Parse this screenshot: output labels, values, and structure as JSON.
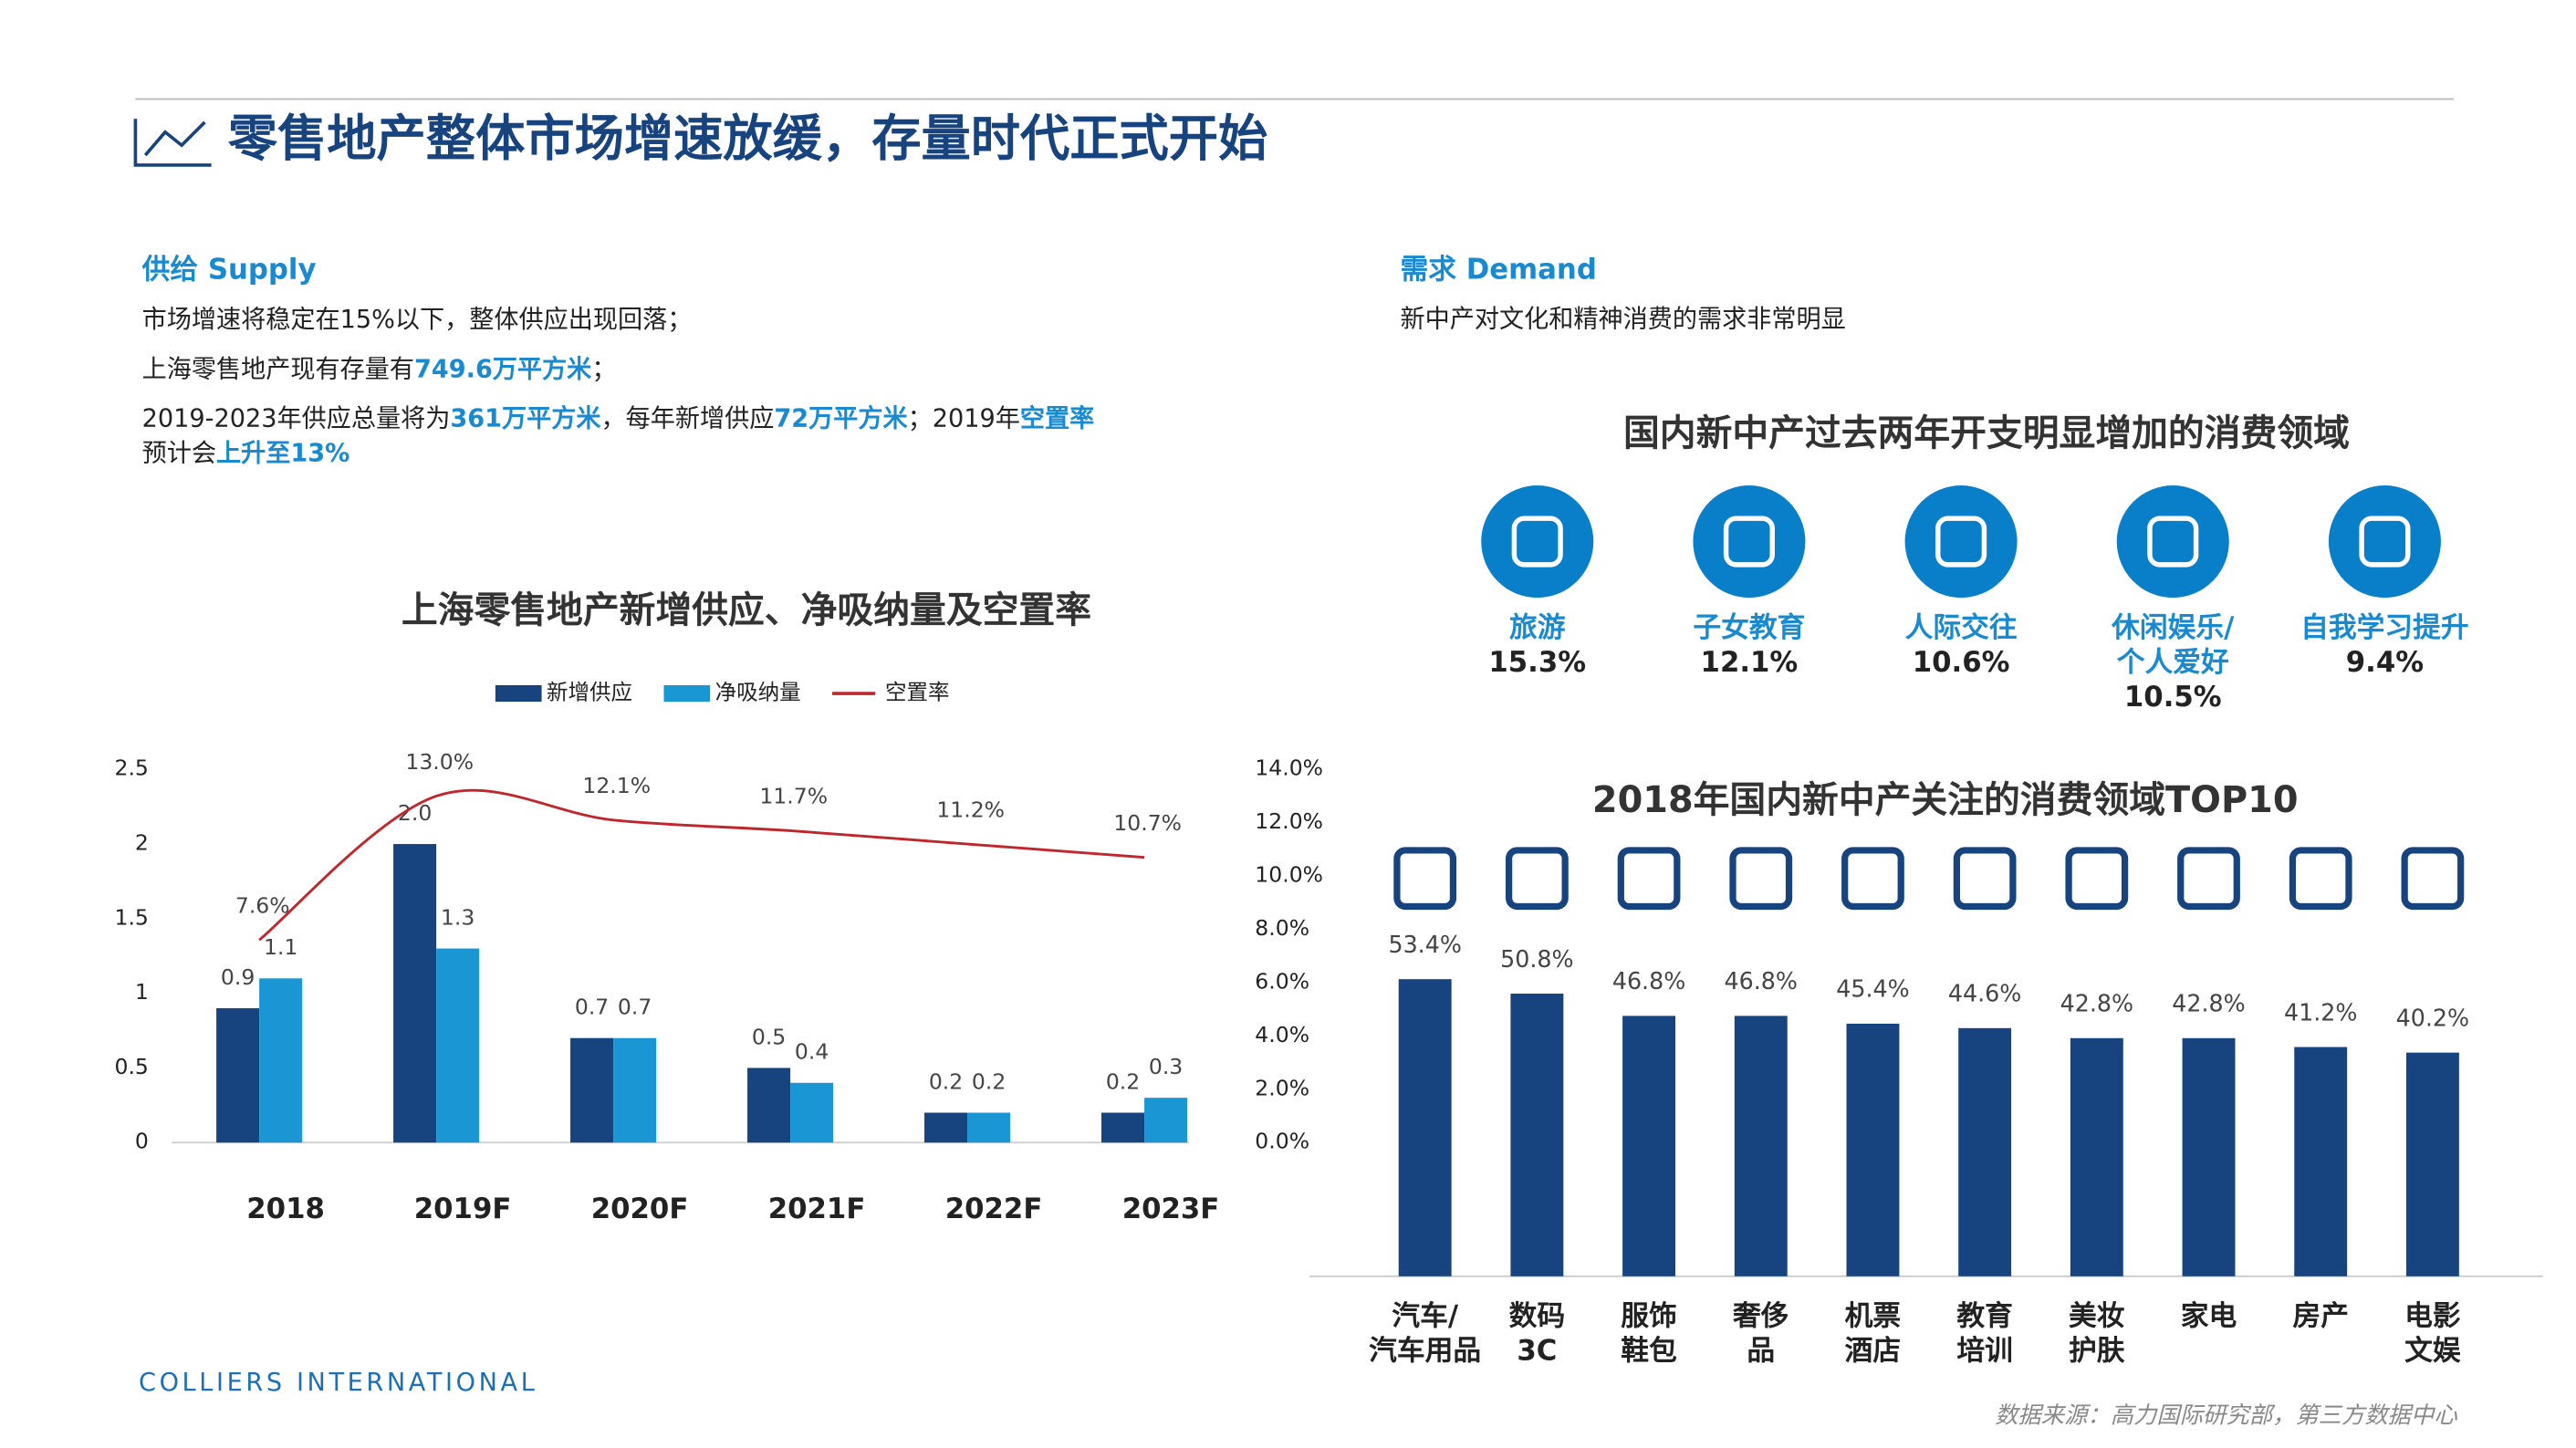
{
  "header": {
    "title": "零售地产整体市场增速放缓，存量时代正式开始"
  },
  "supply": {
    "heading": "供给 Supply",
    "lines": [
      [
        "市场增速将稳定在15%以下，整体供应出现回落；"
      ],
      [
        "上海零售地产现有存量有",
        "749.6万平方米",
        "；"
      ],
      [
        "2019-2023年供应总量将为",
        "361万平方米",
        "，每年新增供应",
        "72万平方米",
        "；2019年",
        "空置率"
      ],
      [
        "预计会",
        "上升至13%"
      ]
    ]
  },
  "demand": {
    "heading": "需求 Demand",
    "text": "新中产对文化和精神消费的需求非常明显",
    "subtitle": "国内新中产过去两年开支明显增加的消费领域",
    "items": [
      {
        "label": [
          "旅游"
        ],
        "value": "15.3%"
      },
      {
        "label": [
          "子女教育"
        ],
        "value": "12.1%"
      },
      {
        "label": [
          "人际交往"
        ],
        "value": "10.6%"
      },
      {
        "label": [
          "休闲娱乐/",
          "个人爱好"
        ],
        "value": "10.5%"
      },
      {
        "label": [
          "自我学习提升"
        ],
        "value": "9.4%"
      }
    ]
  },
  "chart_data": [
    {
      "type": "bar",
      "title": "上海零售地产新增供应、净吸纳量及空置率",
      "categories": [
        "2018",
        "2019F",
        "2020F",
        "2021F",
        "2022F",
        "2023F"
      ],
      "series": [
        {
          "name": "新增供应",
          "type": "bar",
          "color": "#17437f",
          "values": [
            0.9,
            2,
            0.7,
            0.5,
            0.2,
            0.2
          ],
          "value_labels": [
            "0.9",
            "2.0",
            "0.7",
            "0.5",
            "0.2",
            "0.2"
          ]
        },
        {
          "name": "净吸纳量",
          "type": "bar",
          "color": "#1b96d4",
          "values": [
            1.1,
            1.3,
            0.7,
            0.4,
            0.2,
            0.3
          ]
        },
        {
          "name": "空置率",
          "type": "line",
          "axis": "y2",
          "color": "#c0272d",
          "values": [
            7.6,
            13,
            12.1,
            11.7,
            11.2,
            10.7
          ],
          "value_labels": [
            "7.6%",
            "13.0%",
            "12.1%",
            "11.7%",
            "11.2%",
            "10.7%"
          ]
        }
      ],
      "ylim": [
        0,
        2.5
      ],
      "yticks": [
        0,
        0.5,
        1,
        1.5,
        2,
        2.5
      ],
      "y2lim": [
        0,
        14
      ],
      "y2ticks": [
        {
          "value": 0,
          "label": "0.0%"
        },
        {
          "value": 2,
          "label": "2.0%"
        },
        {
          "value": 4,
          "label": "4.0%"
        },
        {
          "value": 6,
          "label": "6.0%"
        },
        {
          "value": 8,
          "label": "8.0%"
        },
        {
          "value": 10,
          "label": "10.0%"
        },
        {
          "value": 12,
          "label": "12.0%"
        },
        {
          "value": 14,
          "label": "14.0%"
        }
      ]
    },
    {
      "type": "bar",
      "title": "2018年国内新中产关注的消费领域TOP10",
      "categories": [
        [
          "汽车/",
          "汽车用品"
        ],
        [
          "数码",
          "3C"
        ],
        [
          "服饰",
          "鞋包"
        ],
        [
          "奢侈",
          "品"
        ],
        [
          "机票",
          "酒店"
        ],
        [
          "教育",
          "培训"
        ],
        [
          "美妆",
          "护肤"
        ],
        [
          "家电"
        ],
        [
          "房产"
        ],
        [
          "电影",
          "文娱"
        ]
      ],
      "values": [
        53.4,
        50.8,
        46.8,
        46.8,
        45.4,
        44.6,
        42.8,
        42.8,
        41.2,
        40.2
      ],
      "value_labels": [
        "53.4%",
        "50.8%",
        "46.8%",
        "46.8%",
        "45.4%",
        "44.6%",
        "42.8%",
        "42.8%",
        "41.2%",
        "40.2%"
      ],
      "color": "#17437f"
    }
  ],
  "footer": {
    "brand": "COLLIERS INTERNATIONAL",
    "source": "数据来源：高力国际研究部，第三方数据中心"
  }
}
